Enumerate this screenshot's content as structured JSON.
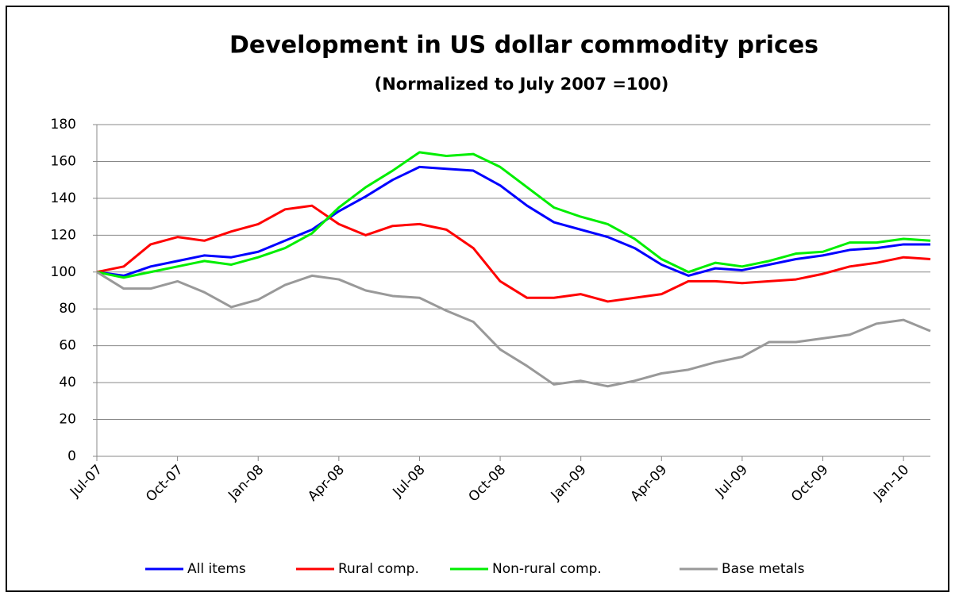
{
  "chart_data": {
    "type": "line",
    "title": "Development in US dollar commodity prices",
    "subtitle": "(Normalized to July 2007 =100)",
    "categories": [
      "Jul-07",
      null,
      null,
      "Oct-07",
      null,
      null,
      "Jan-08",
      null,
      null,
      "Apr-08",
      null,
      null,
      "Jul-08",
      null,
      null,
      "Oct-08",
      null,
      null,
      "Jan-09",
      null,
      null,
      "Apr-09",
      null,
      null,
      "Jul-09",
      null,
      null,
      "Oct-09",
      null,
      null,
      "Jan-10",
      null
    ],
    "series": [
      {
        "name": "All items",
        "color": "#0000ff",
        "values": [
          100,
          98,
          103,
          106,
          109,
          108,
          111,
          117,
          123,
          133,
          141,
          150,
          157,
          156,
          155,
          147,
          136,
          127,
          123,
          119,
          113,
          104,
          98,
          102,
          101,
          104,
          107,
          109,
          112,
          113,
          115,
          115
        ]
      },
      {
        "name": "Rural comp.",
        "color": "#ff0000",
        "values": [
          100,
          103,
          115,
          119,
          117,
          122,
          126,
          134,
          136,
          126,
          120,
          125,
          126,
          123,
          113,
          95,
          86,
          86,
          88,
          84,
          86,
          88,
          95,
          95,
          94,
          95,
          96,
          99,
          103,
          105,
          108,
          107
        ]
      },
      {
        "name": "Non-rural comp.",
        "color": "#00ee00",
        "values": [
          100,
          97,
          100,
          103,
          106,
          104,
          108,
          113,
          121,
          135,
          146,
          155,
          165,
          163,
          164,
          157,
          146,
          135,
          130,
          126,
          118,
          107,
          100,
          105,
          103,
          106,
          110,
          111,
          116,
          116,
          118,
          117
        ]
      },
      {
        "name": "Base metals",
        "color": "#999999",
        "values": [
          100,
          91,
          91,
          95,
          89,
          81,
          85,
          93,
          98,
          96,
          90,
          87,
          86,
          79,
          73,
          58,
          49,
          39,
          41,
          38,
          41,
          45,
          47,
          51,
          54,
          62,
          62,
          64,
          66,
          72,
          74,
          68
        ]
      }
    ],
    "ylim": [
      0,
      180
    ],
    "yticks": [
      0,
      20,
      40,
      60,
      80,
      100,
      120,
      140,
      160,
      180
    ],
    "grid": true,
    "legend": "bottom"
  }
}
